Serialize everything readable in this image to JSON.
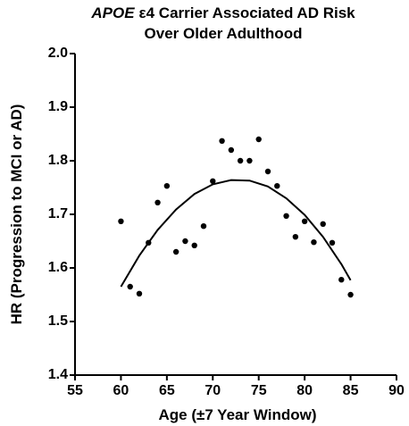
{
  "chart_data": {
    "type": "scatter",
    "title_lines": [
      "APOE",
      "ε4 Carrier Associated AD Risk",
      "Over Older Adulthood"
    ],
    "x_label": "Age (±7 Year Window)",
    "y_label": "HR (Progression to MCI or AD)",
    "x": [
      60,
      61,
      62,
      63,
      64,
      65,
      66,
      67,
      68,
      69,
      70,
      71,
      72,
      73,
      74,
      75,
      76,
      77,
      78,
      79,
      80,
      81,
      82,
      83,
      84,
      85
    ],
    "values": [
      1.687,
      1.565,
      1.552,
      1.647,
      1.722,
      1.753,
      1.63,
      1.65,
      1.642,
      1.678,
      1.762,
      1.837,
      1.82,
      1.8,
      1.8,
      1.84,
      1.78,
      1.753,
      1.697,
      1.658,
      1.687,
      1.648,
      1.682,
      1.647,
      1.578,
      1.55
    ],
    "color": "#000000",
    "fit": {
      "x": [
        60,
        62,
        64,
        66,
        68,
        70,
        72,
        74,
        76,
        78,
        80,
        82,
        84,
        85
      ],
      "values": [
        1.565,
        1.623,
        1.671,
        1.709,
        1.738,
        1.756,
        1.764,
        1.763,
        1.752,
        1.73,
        1.699,
        1.658,
        1.607,
        1.577
      ],
      "color": "#000000"
    },
    "xlim": [
      55,
      90
    ],
    "xticks": [
      55,
      60,
      65,
      70,
      75,
      80,
      85,
      90
    ],
    "ylim": [
      1.4,
      2.0
    ],
    "yticks": [
      1.4,
      1.5,
      1.6,
      1.7,
      1.8,
      1.9,
      {
        "value": 2.0,
        "label": "2.0"
      }
    ],
    "grid": false
  }
}
